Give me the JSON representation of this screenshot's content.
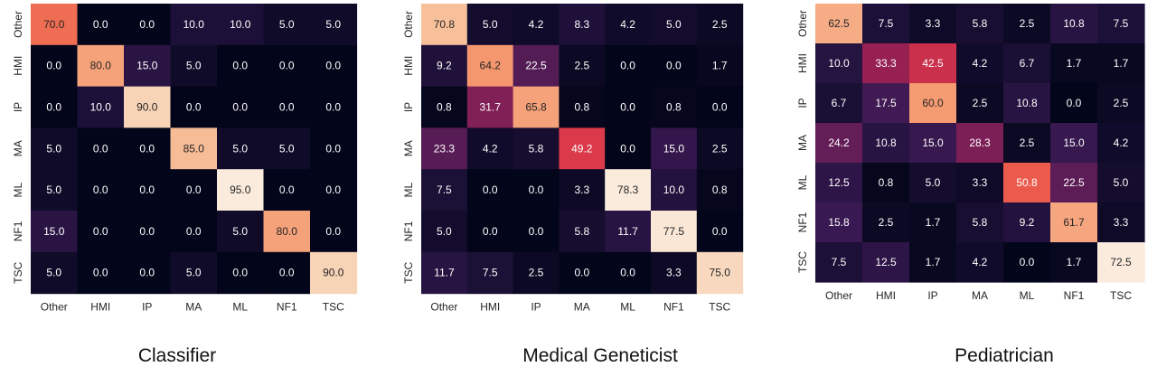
{
  "chart_data": [
    {
      "type": "heatmap",
      "title": "Classifier",
      "rows": [
        "Other",
        "HMI",
        "IP",
        "MA",
        "ML",
        "NF1",
        "TSC"
      ],
      "cols": [
        "Other",
        "HMI",
        "IP",
        "MA",
        "ML",
        "NF1",
        "TSC"
      ],
      "values": [
        [
          70.0,
          0.0,
          0.0,
          10.0,
          10.0,
          5.0,
          5.0
        ],
        [
          0.0,
          80.0,
          15.0,
          5.0,
          0.0,
          0.0,
          0.0
        ],
        [
          0.0,
          10.0,
          90.0,
          0.0,
          0.0,
          0.0,
          0.0
        ],
        [
          5.0,
          0.0,
          0.0,
          85.0,
          5.0,
          5.0,
          0.0
        ],
        [
          5.0,
          0.0,
          0.0,
          0.0,
          95.0,
          0.0,
          0.0
        ],
        [
          15.0,
          0.0,
          0.0,
          0.0,
          5.0,
          80.0,
          0.0
        ],
        [
          5.0,
          0.0,
          0.0,
          5.0,
          0.0,
          0.0,
          90.0
        ]
      ],
      "colormap": "rocket",
      "colorbar": false
    },
    {
      "type": "heatmap",
      "title": "Medical Geneticist",
      "rows": [
        "Other",
        "HMI",
        "IP",
        "MA",
        "ML",
        "NF1",
        "TSC"
      ],
      "cols": [
        "Other",
        "HMI",
        "IP",
        "MA",
        "ML",
        "NF1",
        "TSC"
      ],
      "values": [
        [
          70.8,
          5.0,
          4.2,
          8.3,
          4.2,
          5.0,
          2.5
        ],
        [
          9.2,
          64.2,
          22.5,
          2.5,
          0.0,
          0.0,
          1.7
        ],
        [
          0.8,
          31.7,
          65.8,
          0.8,
          0.0,
          0.8,
          0.0
        ],
        [
          23.3,
          4.2,
          5.8,
          49.2,
          0.0,
          15.0,
          2.5
        ],
        [
          7.5,
          0.0,
          0.0,
          3.3,
          78.3,
          10.0,
          0.8
        ],
        [
          5.0,
          0.0,
          0.0,
          5.8,
          11.7,
          77.5,
          0.0
        ],
        [
          11.7,
          7.5,
          2.5,
          0.0,
          0.0,
          3.3,
          75.0
        ]
      ],
      "colormap": "rocket",
      "colorbar": false
    },
    {
      "type": "heatmap",
      "title": "Pediatrician",
      "rows": [
        "Other",
        "HMI",
        "IP",
        "MA",
        "ML",
        "NF1",
        "TSC"
      ],
      "cols": [
        "Other",
        "HMI",
        "IP",
        "MA",
        "ML",
        "NF1",
        "TSC"
      ],
      "values": [
        [
          62.5,
          7.5,
          3.3,
          5.8,
          2.5,
          10.8,
          7.5
        ],
        [
          10.0,
          33.3,
          42.5,
          4.2,
          6.7,
          1.7,
          1.7
        ],
        [
          6.7,
          17.5,
          60.0,
          2.5,
          10.8,
          0.0,
          2.5
        ],
        [
          24.2,
          10.8,
          15.0,
          28.3,
          2.5,
          15.0,
          4.2
        ],
        [
          12.5,
          0.8,
          5.0,
          3.3,
          50.8,
          22.5,
          5.0
        ],
        [
          15.8,
          2.5,
          1.7,
          5.8,
          9.2,
          61.7,
          3.3
        ],
        [
          7.5,
          12.5,
          1.7,
          4.2,
          0.0,
          1.7,
          72.5
        ]
      ],
      "colormap": "rocket",
      "colorbar": false
    }
  ]
}
